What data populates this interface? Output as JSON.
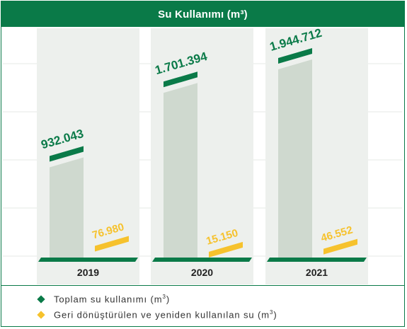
{
  "title": "Su Kullanımı (m³)",
  "colors": {
    "brand_green": "#0a7a48",
    "total_bar": "#cfd9cf",
    "column_bg": "#edf0ed",
    "recycled": "#f6c22d",
    "grid": "#e4e8e4"
  },
  "chart_data": {
    "type": "bar",
    "title": "Su Kullanımı (m³)",
    "categories": [
      "2019",
      "2020",
      "2021"
    ],
    "series": [
      {
        "name": "Toplam su kullanımı (m³)",
        "values": [
          932043,
          1701394,
          1944712
        ],
        "labels": [
          "932.043",
          "1.701.394",
          "1.944.712"
        ]
      },
      {
        "name": "Geri dönüştürülen ve yeniden kullanılan su (m³)",
        "values": [
          76980,
          15150,
          46552
        ],
        "labels": [
          "76.980",
          "15.150",
          "46.552"
        ]
      }
    ],
    "legend_position": "bottom",
    "grid": true
  },
  "legend": [
    {
      "label": "Toplam su kullanımı (m",
      "sup": "3",
      "suffix": ")",
      "color": "#0a7a48"
    },
    {
      "label": "Geri dönüştürülen ve yeniden kullanılan su (m",
      "sup": "3",
      "suffix": ")",
      "color": "#f6c22d"
    }
  ]
}
